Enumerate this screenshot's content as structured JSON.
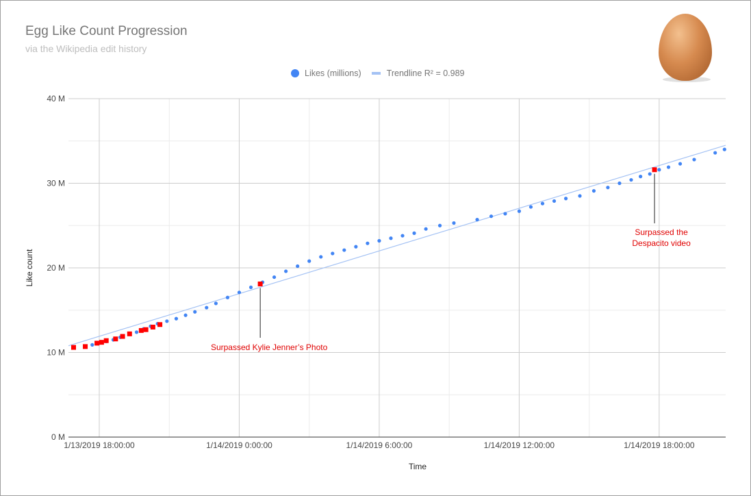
{
  "chart_data": {
    "type": "scatter",
    "title": "Egg Like Count Progression",
    "subtitle": "via the Wikipedia edit history",
    "xlabel": "Time",
    "ylabel": "Like count",
    "x_unit": "hours since 1/13/2019 0:00",
    "xlim": [
      16.68,
      44.85
    ],
    "ylim": [
      0,
      40
    ],
    "grid": true,
    "legend_position": "top",
    "legend": [
      "Likes (millions)",
      "Trendline R² = 0.989"
    ],
    "yticks": [
      {
        "v": 0,
        "label": "0 M"
      },
      {
        "v": 10,
        "label": "10 M"
      },
      {
        "v": 20,
        "label": "20 M"
      },
      {
        "v": 30,
        "label": "30 M"
      },
      {
        "v": 40,
        "label": "40 M"
      }
    ],
    "xticks": [
      {
        "v": 18,
        "label": "1/13/2019 18:00:00"
      },
      {
        "v": 24,
        "label": "1/14/2019 0:00:00"
      },
      {
        "v": 30,
        "label": "1/14/2019 6:00:00"
      },
      {
        "v": 36,
        "label": "1/14/2019 12:00:00"
      },
      {
        "v": 42,
        "label": "1/14/2019 18:00:00"
      }
    ],
    "x_minor_ticks": [
      21,
      27,
      33,
      39
    ],
    "y_minor_ticks": [
      5,
      15,
      25,
      35
    ],
    "series_color": "#4285f4",
    "highlight_color": "#ff0000",
    "trend_color": "#a4c2f4",
    "points": [
      [
        17.4,
        10.7
      ],
      [
        17.7,
        10.9
      ],
      [
        18.0,
        11.1
      ],
      [
        18.3,
        11.3
      ],
      [
        18.6,
        11.5
      ],
      [
        18.9,
        11.8
      ],
      [
        19.3,
        12.2
      ],
      [
        19.6,
        12.4
      ],
      [
        19.9,
        12.8
      ],
      [
        20.2,
        13.1
      ],
      [
        20.5,
        13.4
      ],
      [
        20.9,
        13.7
      ],
      [
        21.3,
        14.0
      ],
      [
        21.7,
        14.4
      ],
      [
        22.1,
        14.8
      ],
      [
        22.6,
        15.3
      ],
      [
        23.0,
        15.8
      ],
      [
        23.5,
        16.5
      ],
      [
        24.0,
        17.1
      ],
      [
        24.5,
        17.7
      ],
      [
        25.0,
        18.3
      ],
      [
        25.5,
        18.9
      ],
      [
        26.0,
        19.6
      ],
      [
        26.5,
        20.2
      ],
      [
        27.0,
        20.8
      ],
      [
        27.5,
        21.3
      ],
      [
        28.0,
        21.7
      ],
      [
        28.5,
        22.1
      ],
      [
        29.0,
        22.5
      ],
      [
        29.5,
        22.9
      ],
      [
        30.0,
        23.2
      ],
      [
        30.5,
        23.5
      ],
      [
        31.0,
        23.8
      ],
      [
        31.5,
        24.1
      ],
      [
        32.0,
        24.6
      ],
      [
        32.6,
        25.0
      ],
      [
        33.2,
        25.3
      ],
      [
        34.2,
        25.7
      ],
      [
        34.8,
        26.1
      ],
      [
        35.4,
        26.4
      ],
      [
        36.0,
        26.7
      ],
      [
        36.5,
        27.2
      ],
      [
        37.0,
        27.6
      ],
      [
        37.5,
        27.9
      ],
      [
        38.0,
        28.2
      ],
      [
        38.6,
        28.5
      ],
      [
        39.2,
        29.1
      ],
      [
        39.8,
        29.5
      ],
      [
        40.3,
        30.0
      ],
      [
        40.8,
        30.4
      ],
      [
        41.2,
        30.8
      ],
      [
        41.6,
        31.1
      ],
      [
        42.0,
        31.6
      ],
      [
        42.4,
        31.9
      ],
      [
        42.9,
        32.3
      ],
      [
        43.5,
        32.8
      ],
      [
        44.4,
        33.6
      ],
      [
        44.8,
        34.0
      ]
    ],
    "highlight_points": [
      [
        16.9,
        10.6
      ],
      [
        17.4,
        10.7
      ],
      [
        17.9,
        11.1
      ],
      [
        18.1,
        11.2
      ],
      [
        18.3,
        11.4
      ],
      [
        18.7,
        11.6
      ],
      [
        19.0,
        11.9
      ],
      [
        19.3,
        12.2
      ],
      [
        19.8,
        12.6
      ],
      [
        20.0,
        12.7
      ],
      [
        20.3,
        13.0
      ],
      [
        20.6,
        13.3
      ],
      [
        24.9,
        18.1
      ],
      [
        41.8,
        31.6
      ]
    ],
    "trendline": {
      "slope": 0.841,
      "intercept": -3.23,
      "r2": 0.989
    },
    "annotations": [
      {
        "x": 24.9,
        "y": 18.1,
        "lines": [
          "Surpassed Kylie Jenner’s Photo"
        ]
      },
      {
        "x": 41.8,
        "y": 31.6,
        "lines": [
          "Surpassed the",
          "Despacito video"
        ]
      }
    ]
  }
}
